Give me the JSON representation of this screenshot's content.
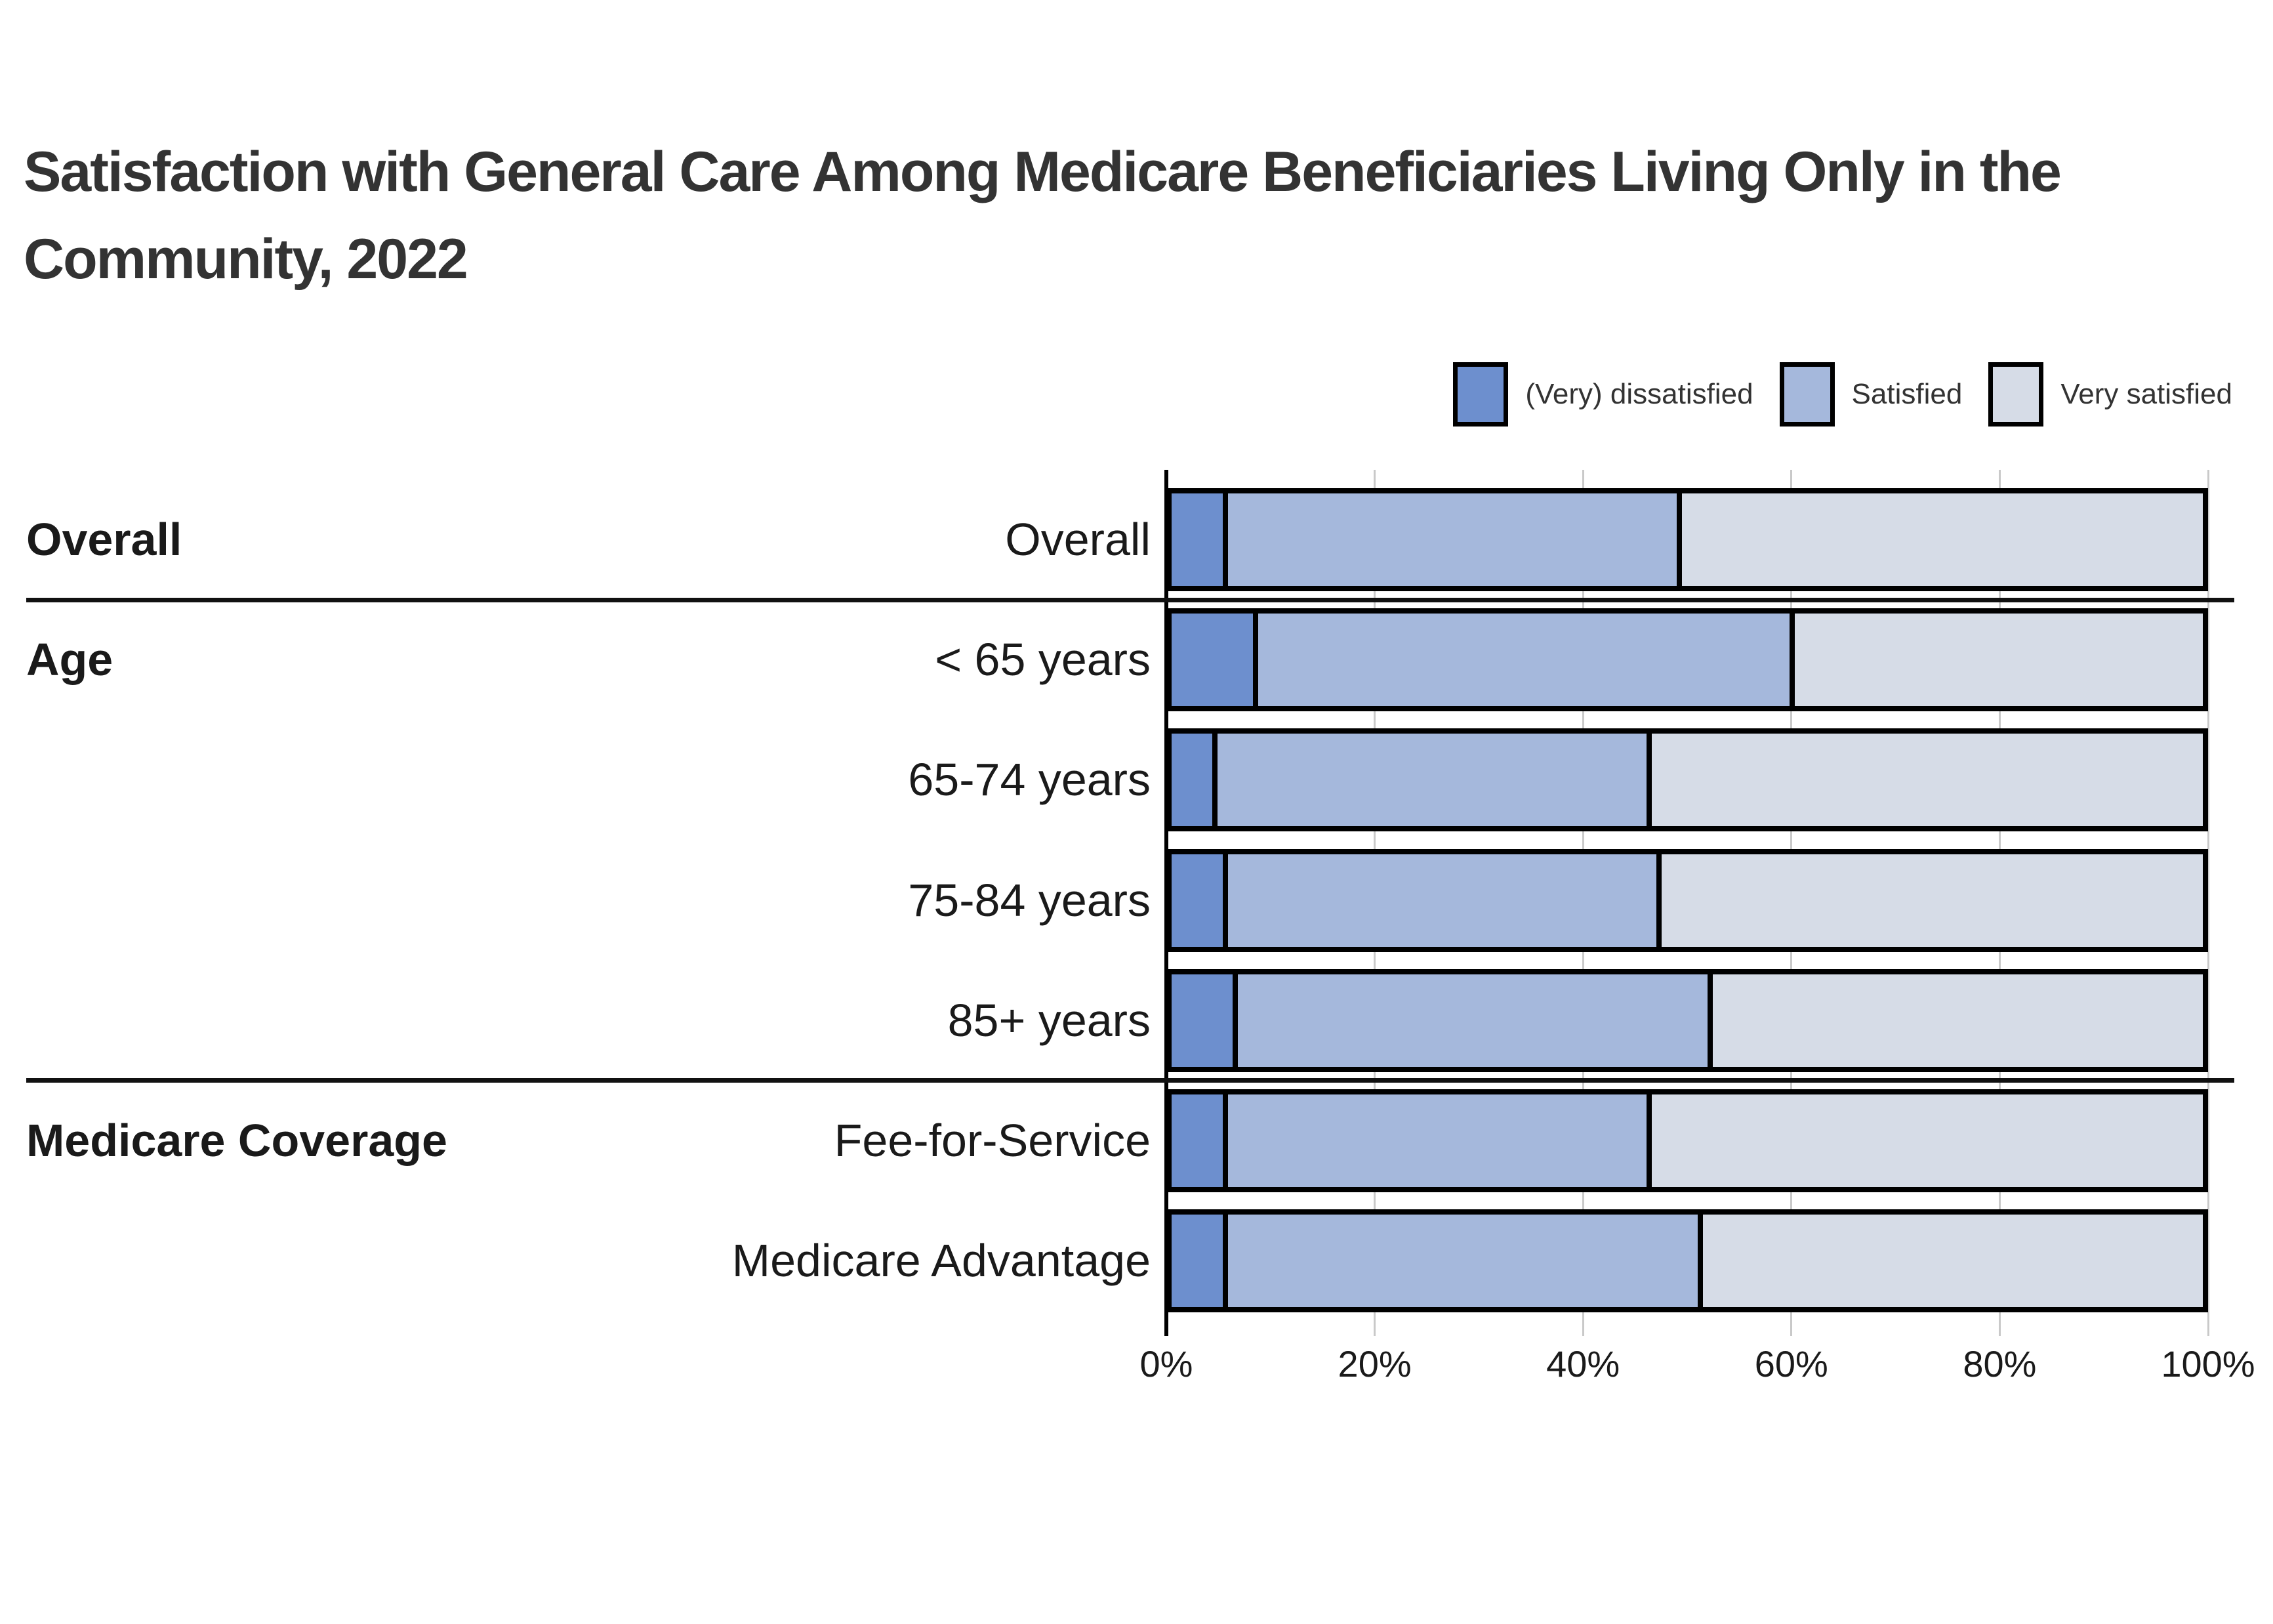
{
  "title": "Satisfaction with General Care Among Medicare Beneficiaries Living Only in the Community, 2022",
  "legend": [
    {
      "label": "(Very) dissatisfied",
      "color": "#6d8fce"
    },
    {
      "label": "Satisfied",
      "color": "#a5b8dc"
    },
    {
      "label": "Very satisfied",
      "color": "#d6dce7"
    }
  ],
  "chart_data": {
    "type": "bar",
    "orientation": "horizontal",
    "stacked": true,
    "unit": "percent",
    "title": "Satisfaction with General Care Among Medicare Beneficiaries Living Only in the Community, 2022",
    "categories": [
      "Overall",
      "< 65 years",
      "65-74 years",
      "75-84 years",
      "85+ years",
      "Fee-for-Service",
      "Medicare Advantage"
    ],
    "groups": [
      {
        "label": "Overall",
        "rows": [
          0
        ]
      },
      {
        "label": "Age",
        "rows": [
          1,
          2,
          3,
          4
        ]
      },
      {
        "label": "Medicare Coverage",
        "rows": [
          5,
          6
        ]
      }
    ],
    "series": [
      {
        "name": "(Very) dissatisfied",
        "color": "#6d8fce",
        "values": [
          5,
          8,
          4,
          5,
          6,
          5,
          5
        ]
      },
      {
        "name": "Satisfied",
        "color": "#a5b8dc",
        "values": [
          44,
          52,
          42,
          42,
          46,
          41,
          46
        ]
      },
      {
        "name": "Very satisfied",
        "color": "#d6dce7",
        "values": [
          51,
          40,
          54,
          53,
          48,
          54,
          49
        ]
      }
    ],
    "xlim": [
      0,
      100
    ],
    "x_tick_values": [
      0,
      20,
      40,
      60,
      80,
      100
    ],
    "x_ticks": [
      "0%",
      "20%",
      "40%",
      "60%",
      "80%",
      "100%"
    ],
    "grid": "vertical",
    "legend_position": "top-right"
  },
  "colors": {
    "background": "#ffffff",
    "bar_border": "#000000",
    "gridline": "#c9c9c9",
    "axis": "#000000",
    "title_text": "#333333",
    "label_text": "#1a1a1a"
  }
}
